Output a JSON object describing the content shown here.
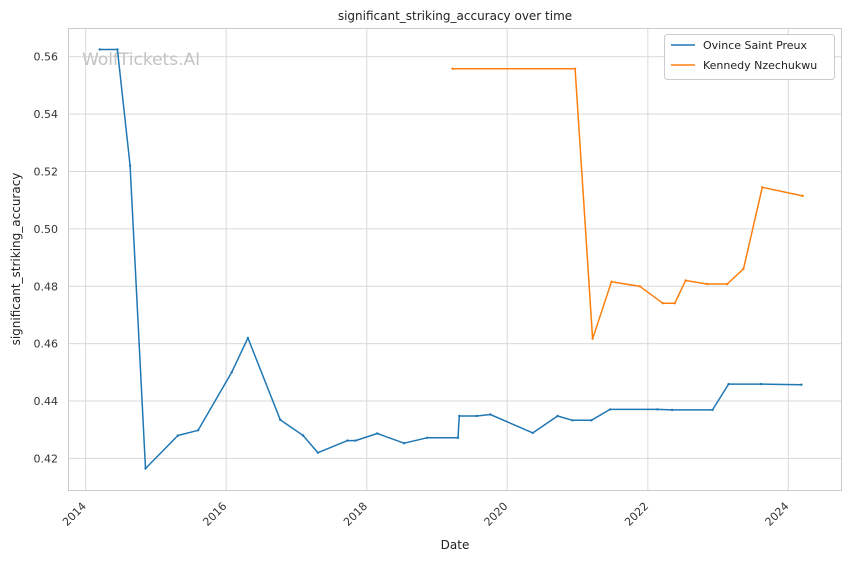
{
  "chart_data": {
    "type": "line",
    "title": "significant_striking_accuracy over time",
    "xlabel": "Date",
    "ylabel": "significant_striking_accuracy",
    "x_ticks": [
      "2014",
      "2016",
      "2018",
      "2020",
      "2022",
      "2024"
    ],
    "y_ticks": [
      "0.42",
      "0.44",
      "0.46",
      "0.48",
      "0.50",
      "0.52",
      "0.54",
      "0.56"
    ],
    "xlim": [
      "2013-10-01",
      "2024-10-01"
    ],
    "ylim": [
      0.409,
      0.57
    ],
    "grid": true,
    "legend_position": "top-right",
    "watermark": "WolfTickets.AI",
    "series": [
      {
        "name": "Ovince Saint Preux",
        "color": "#1f77b4",
        "points": [
          [
            "2014-03-15",
            0.5625
          ],
          [
            "2014-06-15",
            0.5625
          ],
          [
            "2014-08-20",
            0.522
          ],
          [
            "2014-11-08",
            0.4165
          ],
          [
            "2015-04-25",
            0.428
          ],
          [
            "2015-08-08",
            0.4298
          ],
          [
            "2016-01-30",
            0.45
          ],
          [
            "2016-04-23",
            0.462
          ],
          [
            "2016-10-08",
            0.4335
          ],
          [
            "2017-02-04",
            0.428
          ],
          [
            "2017-04-22",
            0.422
          ],
          [
            "2017-09-23",
            0.4262
          ],
          [
            "2017-11-04",
            0.4262
          ],
          [
            "2018-02-24",
            0.4287
          ],
          [
            "2018-07-14",
            0.4253
          ],
          [
            "2018-11-10",
            0.4272
          ],
          [
            "2019-04-20",
            0.4272
          ],
          [
            "2019-04-27",
            0.4348
          ],
          [
            "2019-07-27",
            0.4348
          ],
          [
            "2019-10-05",
            0.4353
          ],
          [
            "2020-05-13",
            0.4289
          ],
          [
            "2020-09-19",
            0.4348
          ],
          [
            "2020-12-05",
            0.4333
          ],
          [
            "2021-03-13",
            0.4333
          ],
          [
            "2021-06-19",
            0.4371
          ],
          [
            "2022-02-19",
            0.4371
          ],
          [
            "2022-05-07",
            0.4369
          ],
          [
            "2022-12-03",
            0.4369
          ],
          [
            "2023-02-25",
            0.4459
          ],
          [
            "2023-08-12",
            0.4459
          ],
          [
            "2024-03-09",
            0.4457
          ]
        ]
      },
      {
        "name": "Kennedy Nzechukwu",
        "color": "#ff7f0e",
        "points": [
          [
            "2019-03-23",
            0.5558
          ],
          [
            "2020-12-19",
            0.5558
          ],
          [
            "2021-03-20",
            0.4617
          ],
          [
            "2021-06-26",
            0.4816
          ],
          [
            "2021-11-20",
            0.48
          ],
          [
            "2022-03-19",
            0.4741
          ],
          [
            "2022-05-21",
            0.4741
          ],
          [
            "2022-07-16",
            0.482
          ],
          [
            "2022-11-05",
            0.4808
          ],
          [
            "2023-02-18",
            0.4808
          ],
          [
            "2023-05-13",
            0.4861
          ],
          [
            "2023-08-19",
            0.5145
          ],
          [
            "2024-03-16",
            0.5115
          ]
        ]
      }
    ]
  }
}
